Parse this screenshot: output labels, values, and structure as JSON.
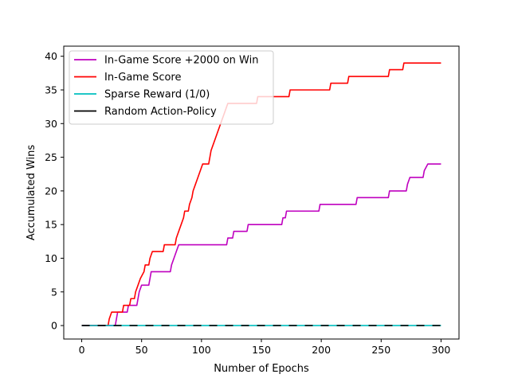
{
  "chart_data": {
    "type": "line",
    "title": "",
    "xlabel": "Number of Epochs",
    "ylabel": "Accumulated Wins",
    "xlim": [
      -15,
      315
    ],
    "ylim": [
      -2,
      41.5
    ],
    "xticks": [
      0,
      50,
      100,
      150,
      200,
      250,
      300
    ],
    "yticks": [
      0,
      5,
      10,
      15,
      20,
      25,
      30,
      35,
      40
    ],
    "grid": false,
    "legend_position": "upper-left",
    "series": [
      {
        "name": "In-Game Score +2000 on Win",
        "color": "#bf00bf",
        "step": true,
        "points": [
          [
            0,
            0
          ],
          [
            28,
            0
          ],
          [
            29,
            1
          ],
          [
            30,
            2
          ],
          [
            38,
            2
          ],
          [
            39,
            3
          ],
          [
            46,
            3
          ],
          [
            47,
            4
          ],
          [
            48,
            5
          ],
          [
            50,
            6
          ],
          [
            56,
            6
          ],
          [
            57,
            7
          ],
          [
            58,
            8
          ],
          [
            74,
            8
          ],
          [
            75,
            9
          ],
          [
            77,
            10
          ],
          [
            79,
            11
          ],
          [
            81,
            12
          ],
          [
            121,
            12
          ],
          [
            122,
            13
          ],
          [
            126,
            13
          ],
          [
            127,
            14
          ],
          [
            138,
            14
          ],
          [
            139,
            15
          ],
          [
            167,
            15
          ],
          [
            168,
            16
          ],
          [
            170,
            16
          ],
          [
            171,
            17
          ],
          [
            198,
            17
          ],
          [
            199,
            18
          ],
          [
            229,
            18
          ],
          [
            230,
            19
          ],
          [
            256,
            19
          ],
          [
            257,
            20
          ],
          [
            271,
            20
          ],
          [
            272,
            21
          ],
          [
            274,
            22
          ],
          [
            285,
            22
          ],
          [
            286,
            23
          ],
          [
            289,
            24
          ],
          [
            300,
            24
          ]
        ]
      },
      {
        "name": "In-Game Score",
        "color": "#ff0000",
        "step": true,
        "points": [
          [
            0,
            0
          ],
          [
            22,
            0
          ],
          [
            23,
            1
          ],
          [
            25,
            2
          ],
          [
            34,
            2
          ],
          [
            35,
            3
          ],
          [
            40,
            3
          ],
          [
            41,
            4
          ],
          [
            44,
            4
          ],
          [
            45,
            5
          ],
          [
            47,
            6
          ],
          [
            49,
            7
          ],
          [
            52,
            8
          ],
          [
            53,
            9
          ],
          [
            56,
            9
          ],
          [
            57,
            10
          ],
          [
            59,
            11
          ],
          [
            68,
            11
          ],
          [
            69,
            12
          ],
          [
            78,
            12
          ],
          [
            79,
            13
          ],
          [
            81,
            14
          ],
          [
            83,
            15
          ],
          [
            85,
            16
          ],
          [
            86,
            17
          ],
          [
            89,
            17
          ],
          [
            90,
            18
          ],
          [
            92,
            19
          ],
          [
            93,
            20
          ],
          [
            95,
            21
          ],
          [
            97,
            22
          ],
          [
            99,
            23
          ],
          [
            101,
            24
          ],
          [
            106,
            24
          ],
          [
            107,
            25
          ],
          [
            108,
            26
          ],
          [
            110,
            27
          ],
          [
            112,
            28
          ],
          [
            114,
            29
          ],
          [
            116,
            30
          ],
          [
            118,
            31
          ],
          [
            120,
            32
          ],
          [
            122,
            33
          ],
          [
            146,
            33
          ],
          [
            147,
            34
          ],
          [
            173,
            34
          ],
          [
            174,
            35
          ],
          [
            207,
            35
          ],
          [
            208,
            36
          ],
          [
            222,
            36
          ],
          [
            223,
            37
          ],
          [
            256,
            37
          ],
          [
            257,
            38
          ],
          [
            268,
            38
          ],
          [
            269,
            39
          ],
          [
            300,
            39
          ]
        ]
      },
      {
        "name": "Sparse Reward (1/0)",
        "color": "#00bfbf",
        "step": false,
        "points": [
          [
            0,
            0
          ],
          [
            300,
            0
          ]
        ]
      },
      {
        "name": "Random Action-Policy",
        "color": "#000000",
        "step": false,
        "dashed": true,
        "points": [
          [
            0,
            0
          ],
          [
            300,
            0
          ]
        ]
      }
    ]
  }
}
